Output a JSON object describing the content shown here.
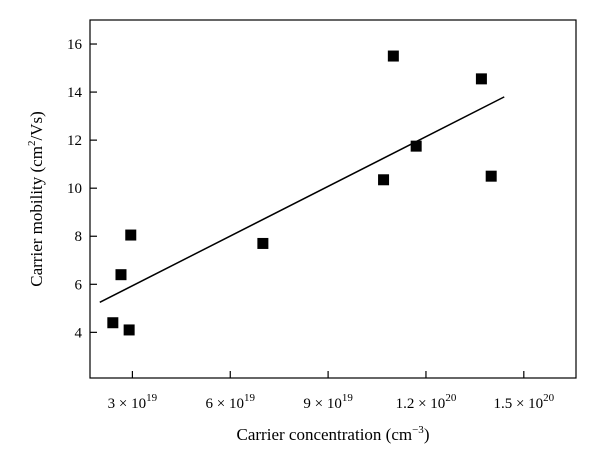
{
  "chart_data": {
    "type": "scatter",
    "title": "",
    "xlabel": {
      "main": "Carrier concentration (cm",
      "sup": "−3",
      "end": ")"
    },
    "ylabel": {
      "main": "Carrier mobility (cm",
      "sup": "2",
      "end": "/Vs)"
    },
    "xlim": [
      1.7e+19,
      1.66e+20
    ],
    "ylim": [
      2.1,
      17.0
    ],
    "x_ticks": [
      {
        "value": 3e+19,
        "mantissa": "3",
        "exp": "19"
      },
      {
        "value": 6e+19,
        "mantissa": "6",
        "exp": "19"
      },
      {
        "value": 9e+19,
        "mantissa": "9",
        "exp": "19"
      },
      {
        "value": 1.2e+20,
        "mantissa": "1.2",
        "exp": "20"
      },
      {
        "value": 1.5e+20,
        "mantissa": "1.5",
        "exp": "20"
      }
    ],
    "y_ticks": [
      {
        "value": 4,
        "label": "4"
      },
      {
        "value": 6,
        "label": "6"
      },
      {
        "value": 8,
        "label": "8"
      },
      {
        "value": 10,
        "label": "10"
      },
      {
        "value": 12,
        "label": "12"
      },
      {
        "value": 14,
        "label": "14"
      },
      {
        "value": 16,
        "label": "16"
      }
    ],
    "grid": false,
    "series": [
      {
        "marker": "square",
        "color": "#000000",
        "points": [
          {
            "x": 2.4e+19,
            "y": 4.4
          },
          {
            "x": 2.9e+19,
            "y": 4.1
          },
          {
            "x": 2.65e+19,
            "y": 6.4
          },
          {
            "x": 2.95e+19,
            "y": 8.05
          },
          {
            "x": 7e+19,
            "y": 7.7
          },
          {
            "x": 1.07e+20,
            "y": 10.35
          },
          {
            "x": 1.1e+20,
            "y": 15.5
          },
          {
            "x": 1.17e+20,
            "y": 11.75
          },
          {
            "x": 1.37e+20,
            "y": 14.55
          },
          {
            "x": 1.4e+20,
            "y": 10.5
          }
        ]
      }
    ],
    "fit_line": {
      "x": [
        2e+19,
        1.44e+20
      ],
      "y": [
        5.25,
        13.8
      ],
      "color": "#000000"
    }
  }
}
